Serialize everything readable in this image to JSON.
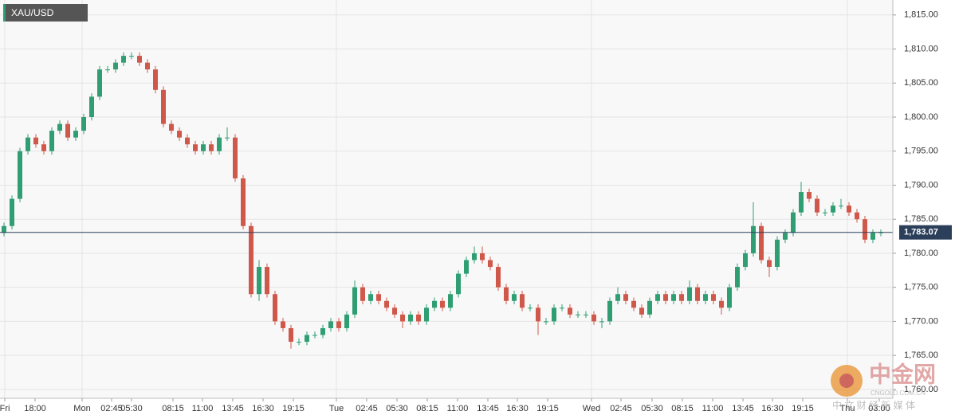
{
  "chart_data": {
    "type": "candlestick",
    "title": "XAU/USD",
    "watermark": "中金网",
    "watermark_sub": "CNGOLD.COM.CN",
    "watermark_tag": "中 文 财 经 新 媒 体",
    "up_color": "#2f9e73",
    "down_color": "#d0584a",
    "grid": true,
    "ylim": [
      1758.7,
      1817.2
    ],
    "yticks": [
      {
        "value": 1760,
        "label": "1,760.00"
      },
      {
        "value": 1765,
        "label": "1,765.00"
      },
      {
        "value": 1770,
        "label": "1,770.00"
      },
      {
        "value": 1775,
        "label": "1,775.00"
      },
      {
        "value": 1780,
        "label": "1,780.00"
      },
      {
        "value": 1785,
        "label": "1,785.00"
      },
      {
        "value": 1790,
        "label": "1,790.00"
      },
      {
        "value": 1795,
        "label": "1,795.00"
      },
      {
        "value": 1800,
        "label": "1,800.00"
      },
      {
        "value": 1805,
        "label": "1,805.00"
      },
      {
        "value": 1810,
        "label": "1,810.00"
      },
      {
        "value": 1815,
        "label": "1,815.00"
      }
    ],
    "xlim": [
      0,
      112
    ],
    "xticks": [
      {
        "value": 0.6,
        "label": "Fri"
      },
      {
        "value": 4.4,
        "label": "18:00"
      },
      {
        "value": 10.3,
        "label": "Mon"
      },
      {
        "value": 14,
        "label": "02:45"
      },
      {
        "value": 16.5,
        "label": "05:30"
      },
      {
        "value": 21.7,
        "label": "08:15"
      },
      {
        "value": 25.4,
        "label": "11:00"
      },
      {
        "value": 29.2,
        "label": "13:45"
      },
      {
        "value": 33,
        "label": "16:30"
      },
      {
        "value": 36.8,
        "label": "19:15"
      },
      {
        "value": 42.2,
        "label": "Tue"
      },
      {
        "value": 46,
        "label": "02:45"
      },
      {
        "value": 49.8,
        "label": "05:30"
      },
      {
        "value": 53.6,
        "label": "08:15"
      },
      {
        "value": 57.4,
        "label": "11:00"
      },
      {
        "value": 61.2,
        "label": "13:45"
      },
      {
        "value": 64.9,
        "label": "16:30"
      },
      {
        "value": 68.7,
        "label": "19:15"
      },
      {
        "value": 74.2,
        "label": "Wed"
      },
      {
        "value": 77.9,
        "label": "02:45"
      },
      {
        "value": 81.8,
        "label": "05:30"
      },
      {
        "value": 85.6,
        "label": "08:15"
      },
      {
        "value": 89.4,
        "label": "11:00"
      },
      {
        "value": 93.2,
        "label": "13:45"
      },
      {
        "value": 96.9,
        "label": "16:30"
      },
      {
        "value": 100.7,
        "label": "19:15"
      },
      {
        "value": 106.3,
        "label": "Thu"
      },
      {
        "value": 110.3,
        "label": "03:00"
      }
    ],
    "last_value_label": "1,783.07",
    "open": [
      1783,
      1784,
      1788,
      1795,
      1797,
      1796,
      1795,
      1798,
      1799,
      1797,
      1798,
      1800,
      1803,
      1807,
      1807,
      1808,
      1809,
      1809,
      1808,
      1807,
      1804,
      1799,
      1798,
      1797,
      1796,
      1795,
      1796,
      1795,
      1797,
      1797,
      1791,
      1784,
      1774,
      1778,
      1774,
      1770,
      1769,
      1767,
      1767,
      1768,
      1768,
      1769,
      1770,
      1769,
      1771,
      1775,
      1773,
      1774,
      1773,
      1772,
      1771,
      1770,
      1771,
      1770,
      1772,
      1773,
      1772,
      1774,
      1777,
      1779,
      1780,
      1779,
      1778,
      1775,
      1773,
      1774,
      1772,
      1772,
      1770,
      1770,
      1772,
      1772,
      1771,
      1771,
      1771,
      1770,
      1770,
      1773,
      1774,
      1773,
      1772,
      1771,
      1773,
      1774,
      1773,
      1774,
      1773,
      1775,
      1773,
      1774,
      1773,
      1772,
      1775,
      1778,
      1780,
      1784,
      1779,
      1778,
      1782,
      1783,
      1786,
      1789,
      1788,
      1786,
      1786,
      1787,
      1787,
      1786,
      1785,
      1782,
      1783
    ],
    "high": [
      1784.5,
      1788.5,
      1795.5,
      1797.5,
      1797.5,
      1796.5,
      1798.5,
      1799.5,
      1799.5,
      1798.5,
      1800.5,
      1803.5,
      1807.5,
      1807.5,
      1808.5,
      1809.5,
      1809.5,
      1809.5,
      1808.5,
      1807.5,
      1804.5,
      1799.5,
      1798.5,
      1797.5,
      1796.5,
      1796.5,
      1796.5,
      1797.5,
      1798.5,
      1797.5,
      1791.5,
      1784.5,
      1779,
      1778.5,
      1774.5,
      1770.5,
      1769.5,
      1767.5,
      1768.5,
      1768.5,
      1769.5,
      1770.5,
      1770.5,
      1771.5,
      1776,
      1775.5,
      1774.5,
      1774.5,
      1773.5,
      1772.5,
      1771.5,
      1771.5,
      1771.5,
      1772.5,
      1773.5,
      1773.5,
      1774.5,
      1777.5,
      1779.5,
      1781,
      1781,
      1779.5,
      1778.5,
      1775.5,
      1774.5,
      1774.5,
      1772.5,
      1772.5,
      1770.5,
      1772.5,
      1772.5,
      1772.5,
      1771.5,
      1771.5,
      1771.5,
      1770.5,
      1773.5,
      1775,
      1774.5,
      1773.5,
      1772.5,
      1773.5,
      1774.5,
      1774.5,
      1774.5,
      1774.5,
      1776,
      1775.5,
      1774.5,
      1774.5,
      1773.5,
      1775.5,
      1778.5,
      1780.5,
      1787.5,
      1784.5,
      1779.5,
      1782.5,
      1783.5,
      1786.5,
      1790.5,
      1789.5,
      1788.5,
      1786.5,
      1787.5,
      1788,
      1787.5,
      1786.5,
      1785.5,
      1783.5,
      1783.5
    ],
    "low": [
      1782.5,
      1783.5,
      1787.5,
      1794.5,
      1795.5,
      1794.5,
      1794.5,
      1797.5,
      1796.5,
      1796.5,
      1797.5,
      1799.5,
      1802.5,
      1806.5,
      1806.5,
      1807.5,
      1808.5,
      1807.5,
      1806.5,
      1803.5,
      1798.5,
      1797.5,
      1796.5,
      1795.5,
      1794.5,
      1794.5,
      1794.5,
      1794.5,
      1796.5,
      1790.5,
      1783.5,
      1773.5,
      1773,
      1773.5,
      1769.5,
      1768.5,
      1766,
      1766.5,
      1766.5,
      1767.5,
      1767.5,
      1768.5,
      1768.5,
      1768.5,
      1770.5,
      1772.5,
      1772.5,
      1772.5,
      1771.5,
      1770.5,
      1769,
      1769.5,
      1769.5,
      1769.5,
      1771.5,
      1771.5,
      1771.5,
      1773.5,
      1776.5,
      1778.5,
      1778.5,
      1777.5,
      1774.5,
      1772.5,
      1772.5,
      1771.5,
      1771.5,
      1768,
      1769.5,
      1769.5,
      1771.5,
      1770.5,
      1770.5,
      1770.5,
      1769.5,
      1769,
      1769.5,
      1772.5,
      1772.5,
      1771.5,
      1770.5,
      1770.5,
      1772.5,
      1772.5,
      1772.5,
      1772.5,
      1772.5,
      1772.5,
      1772.5,
      1772.5,
      1771,
      1771.5,
      1774.5,
      1777.5,
      1779.5,
      1778.5,
      1776.5,
      1777.5,
      1781.5,
      1782.5,
      1785.5,
      1787.5,
      1785.5,
      1785.5,
      1785.5,
      1786.5,
      1785.5,
      1784.5,
      1781.5,
      1781.5,
      1782.5
    ],
    "close": [
      1784,
      1788,
      1795,
      1797,
      1796,
      1795,
      1798,
      1799,
      1797,
      1798,
      1800,
      1803,
      1807,
      1807,
      1808,
      1809,
      1809,
      1808,
      1807,
      1804,
      1799,
      1798,
      1797,
      1796,
      1795,
      1796,
      1795,
      1797,
      1797,
      1791,
      1784,
      1774,
      1778,
      1774,
      1770,
      1769,
      1767,
      1767,
      1768,
      1768,
      1769,
      1770,
      1769,
      1771,
      1775,
      1773,
      1774,
      1773,
      1772,
      1771,
      1770,
      1771,
      1770,
      1772,
      1773,
      1772,
      1774,
      1777,
      1779,
      1780,
      1779,
      1778,
      1775,
      1773,
      1774,
      1772,
      1772,
      1770,
      1770,
      1772,
      1772,
      1771,
      1771,
      1771,
      1770,
      1770,
      1773,
      1774,
      1773,
      1772,
      1771,
      1773,
      1774,
      1773,
      1774,
      1773,
      1775,
      1773,
      1774,
      1773,
      1772,
      1775,
      1778,
      1780,
      1784,
      1779,
      1778,
      1782,
      1783,
      1786,
      1789,
      1788,
      1786,
      1786,
      1787,
      1787,
      1786,
      1785,
      1782,
      1783,
      1783.07
    ]
  }
}
